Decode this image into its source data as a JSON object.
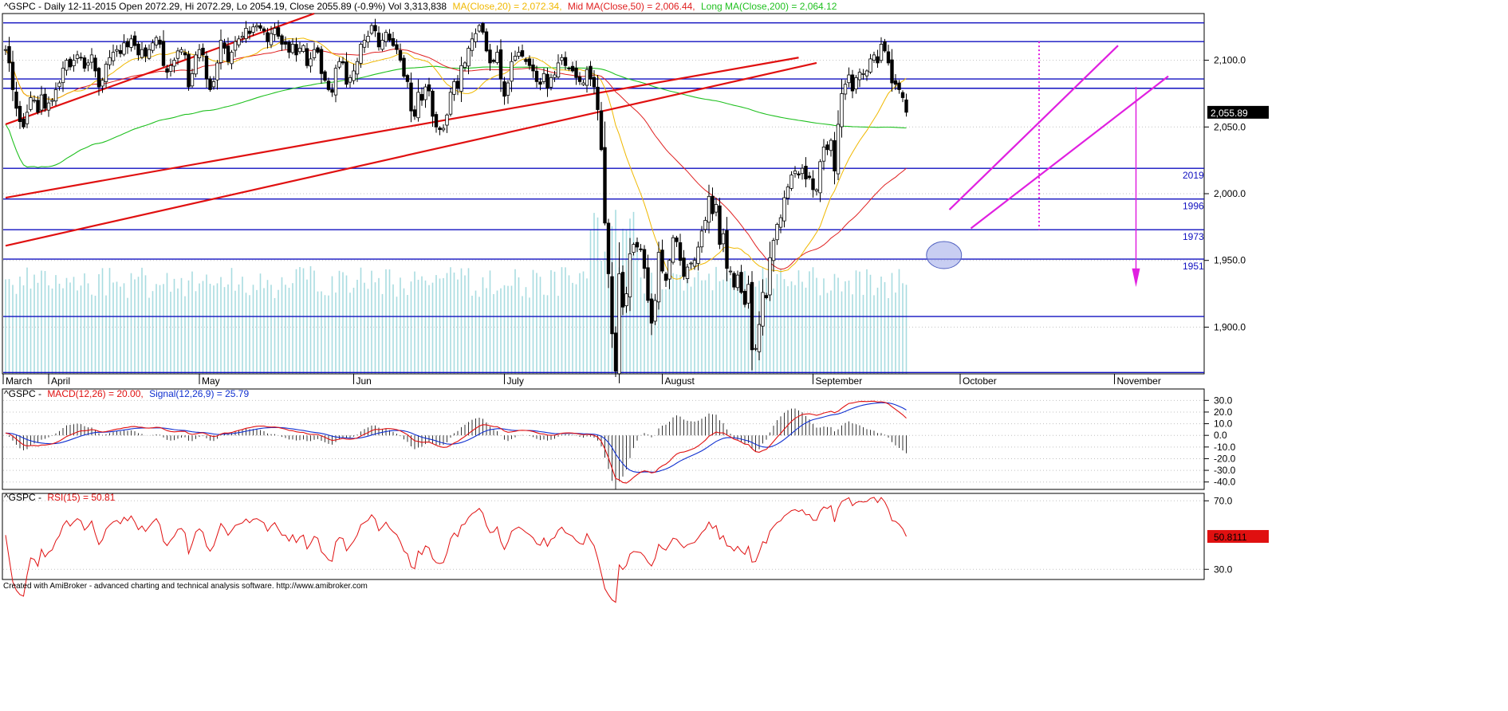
{
  "header": {
    "main": {
      "prefix": "^GSPC - Daily 12-11-2015 Open 2072.29, Hi 2072.29, Lo 2054.19, Close 2055.89 (-0.9%) Vol 3,313,838",
      "ma20": "MA(Close,20) = 2,072.34,",
      "ma50": "Mid MA(Close,50) = 2,006.44,",
      "ma200": "Long MA(Close,200) = 2,064.12"
    },
    "macd": {
      "prefix": "^GSPC -",
      "macd": "MACD(12,26) = 20.00,",
      "signal": "Signal(12,26,9) = 25.79"
    },
    "rsi": {
      "prefix": "^GSPC -",
      "rsi": "RSI(15) = 50.81"
    }
  },
  "footer": "Created with AmiBroker - advanced charting and technical analysis software. http://www.amibroker.com",
  "colors": {
    "ma20": "#f0b800",
    "ma50": "#e02020",
    "ma200": "#20c020",
    "hlines": "#1010c0",
    "trend": "#e01010",
    "channel": "#e020e0",
    "volume": "#a8dce0",
    "macd": "#e01010",
    "signal": "#1030d0",
    "rsi": "#e01010"
  },
  "chart_data": [
    {
      "type": "candlestick",
      "ylim": [
        1865,
        2135
      ],
      "yticks": [
        {
          "v": 1900,
          "label": "1,900.0"
        },
        {
          "v": 1950,
          "label": "1,950.0"
        },
        {
          "v": 2000,
          "label": "2,000.0"
        },
        {
          "v": 2050,
          "label": "2,050.0"
        },
        {
          "v": 2100,
          "label": "2,100.0"
        }
      ],
      "months": [
        {
          "label": "March",
          "i": -2
        },
        {
          "label": "April",
          "i": 12
        },
        {
          "label": "May",
          "i": 54
        },
        {
          "label": "Jun",
          "i": 97
        },
        {
          "label": "July",
          "i": 139
        },
        {
          "label": "August",
          "i": 183
        },
        {
          "label": "September",
          "i": 225
        },
        {
          "label": "October",
          "i": 266
        },
        {
          "label": "November",
          "i": 309
        }
      ],
      "levels": [
        {
          "v": 2128
        },
        {
          "v": 2114
        },
        {
          "v": 2086
        },
        {
          "v": 2079
        },
        {
          "v": 2019,
          "label": "2019"
        },
        {
          "v": 1996,
          "label": "1996"
        },
        {
          "v": 1973,
          "label": "1973"
        },
        {
          "v": 1951,
          "label": "1951"
        },
        {
          "v": 1908
        },
        {
          "v": 1866
        }
      ],
      "last_close_label": "2,055.89",
      "closes": [
        2108,
        2098,
        2078,
        2064,
        2054,
        2050,
        2061,
        2072,
        2070,
        2061,
        2074,
        2064,
        2068,
        2070,
        2078,
        2083,
        2094,
        2100,
        2095,
        2100,
        2104,
        2102,
        2094,
        2098,
        2104,
        2092,
        2080,
        2085,
        2097,
        2102,
        2106,
        2108,
        2105,
        2113,
        2110,
        2116,
        2111,
        2104,
        2108,
        2103,
        2108,
        2113,
        2117,
        2112,
        2096,
        2091,
        2096,
        2100,
        2107,
        2108,
        2104,
        2080,
        2090,
        2104,
        2108,
        2104,
        2086,
        2078,
        2084,
        2098,
        2115,
        2109,
        2099,
        2106,
        2114,
        2116,
        2118,
        2124,
        2120,
        2125,
        2126,
        2124,
        2122,
        2114,
        2120,
        2124,
        2118,
        2112,
        2112,
        2106,
        2112,
        2104,
        2109,
        2111,
        2096,
        2101,
        2108,
        2106,
        2090,
        2085,
        2078,
        2076,
        2094,
        2099,
        2098,
        2082,
        2087,
        2092,
        2099,
        2112,
        2115,
        2118,
        2126,
        2122,
        2110,
        2115,
        2121,
        2115,
        2111,
        2108,
        2100,
        2088,
        2084,
        2062,
        2058,
        2076,
        2070,
        2080,
        2077,
        2058,
        2050,
        2048,
        2049,
        2059,
        2076,
        2084,
        2079,
        2096,
        2098,
        2109,
        2116,
        2120,
        2126,
        2121,
        2107,
        2098,
        2099,
        2106,
        2086,
        2073,
        2083,
        2099,
        2103,
        2106,
        2103,
        2099,
        2096,
        2092,
        2084,
        2082,
        2090,
        2079,
        2087,
        2089,
        2098,
        2102,
        2096,
        2094,
        2092,
        2087,
        2084,
        2083,
        2093,
        2086,
        2080,
        2063,
        2033,
        1978,
        1940,
        1895,
        1867,
        1940,
        1915,
        1925,
        1955,
        1962,
        1960,
        1958,
        1944,
        1920,
        1903,
        1920,
        1956,
        1942,
        1935,
        1950,
        1967,
        1964,
        1950,
        1938,
        1945,
        1948,
        1950,
        1960,
        1972,
        1980,
        1998,
        1985,
        1992,
        1962,
        1970,
        1944,
        1942,
        1930,
        1939,
        1926,
        1917,
        1932,
        1883,
        1884,
        1902,
        1926,
        1922,
        1952,
        1965,
        1977,
        1982,
        1997,
        2005,
        2014,
        2017,
        2014,
        2019,
        2011,
        2012,
        2003,
        2003,
        2024,
        2035,
        2033,
        2040,
        2017,
        2052,
        2075,
        2082,
        2089,
        2077,
        2087,
        2091,
        2090,
        2092,
        2101,
        2104,
        2098,
        2112,
        2107,
        2098,
        2083,
        2082,
        2078,
        2072,
        2061
      ]
    },
    {
      "type": "line",
      "title": "MACD(12,26)",
      "ylim": [
        -45,
        35
      ],
      "yticks": [
        30,
        20,
        10,
        0,
        -10,
        -20,
        -30,
        -40
      ],
      "ytick_labels": [
        "30.0",
        "20.0",
        "10.0",
        "0.0",
        "-10.0",
        "-20.0",
        "-30.0",
        "-40.0"
      ],
      "series": [
        {
          "name": "MACD(12,26)",
          "role": "macd"
        },
        {
          "name": "Signal(12,26,9)",
          "role": "signal"
        }
      ]
    },
    {
      "type": "line",
      "title": "RSI(15)",
      "ylim": [
        25,
        72
      ],
      "yticks": [
        70,
        30
      ],
      "ytick_labels": [
        "70.0",
        "30.0"
      ],
      "last_label": "50.8111"
    }
  ]
}
